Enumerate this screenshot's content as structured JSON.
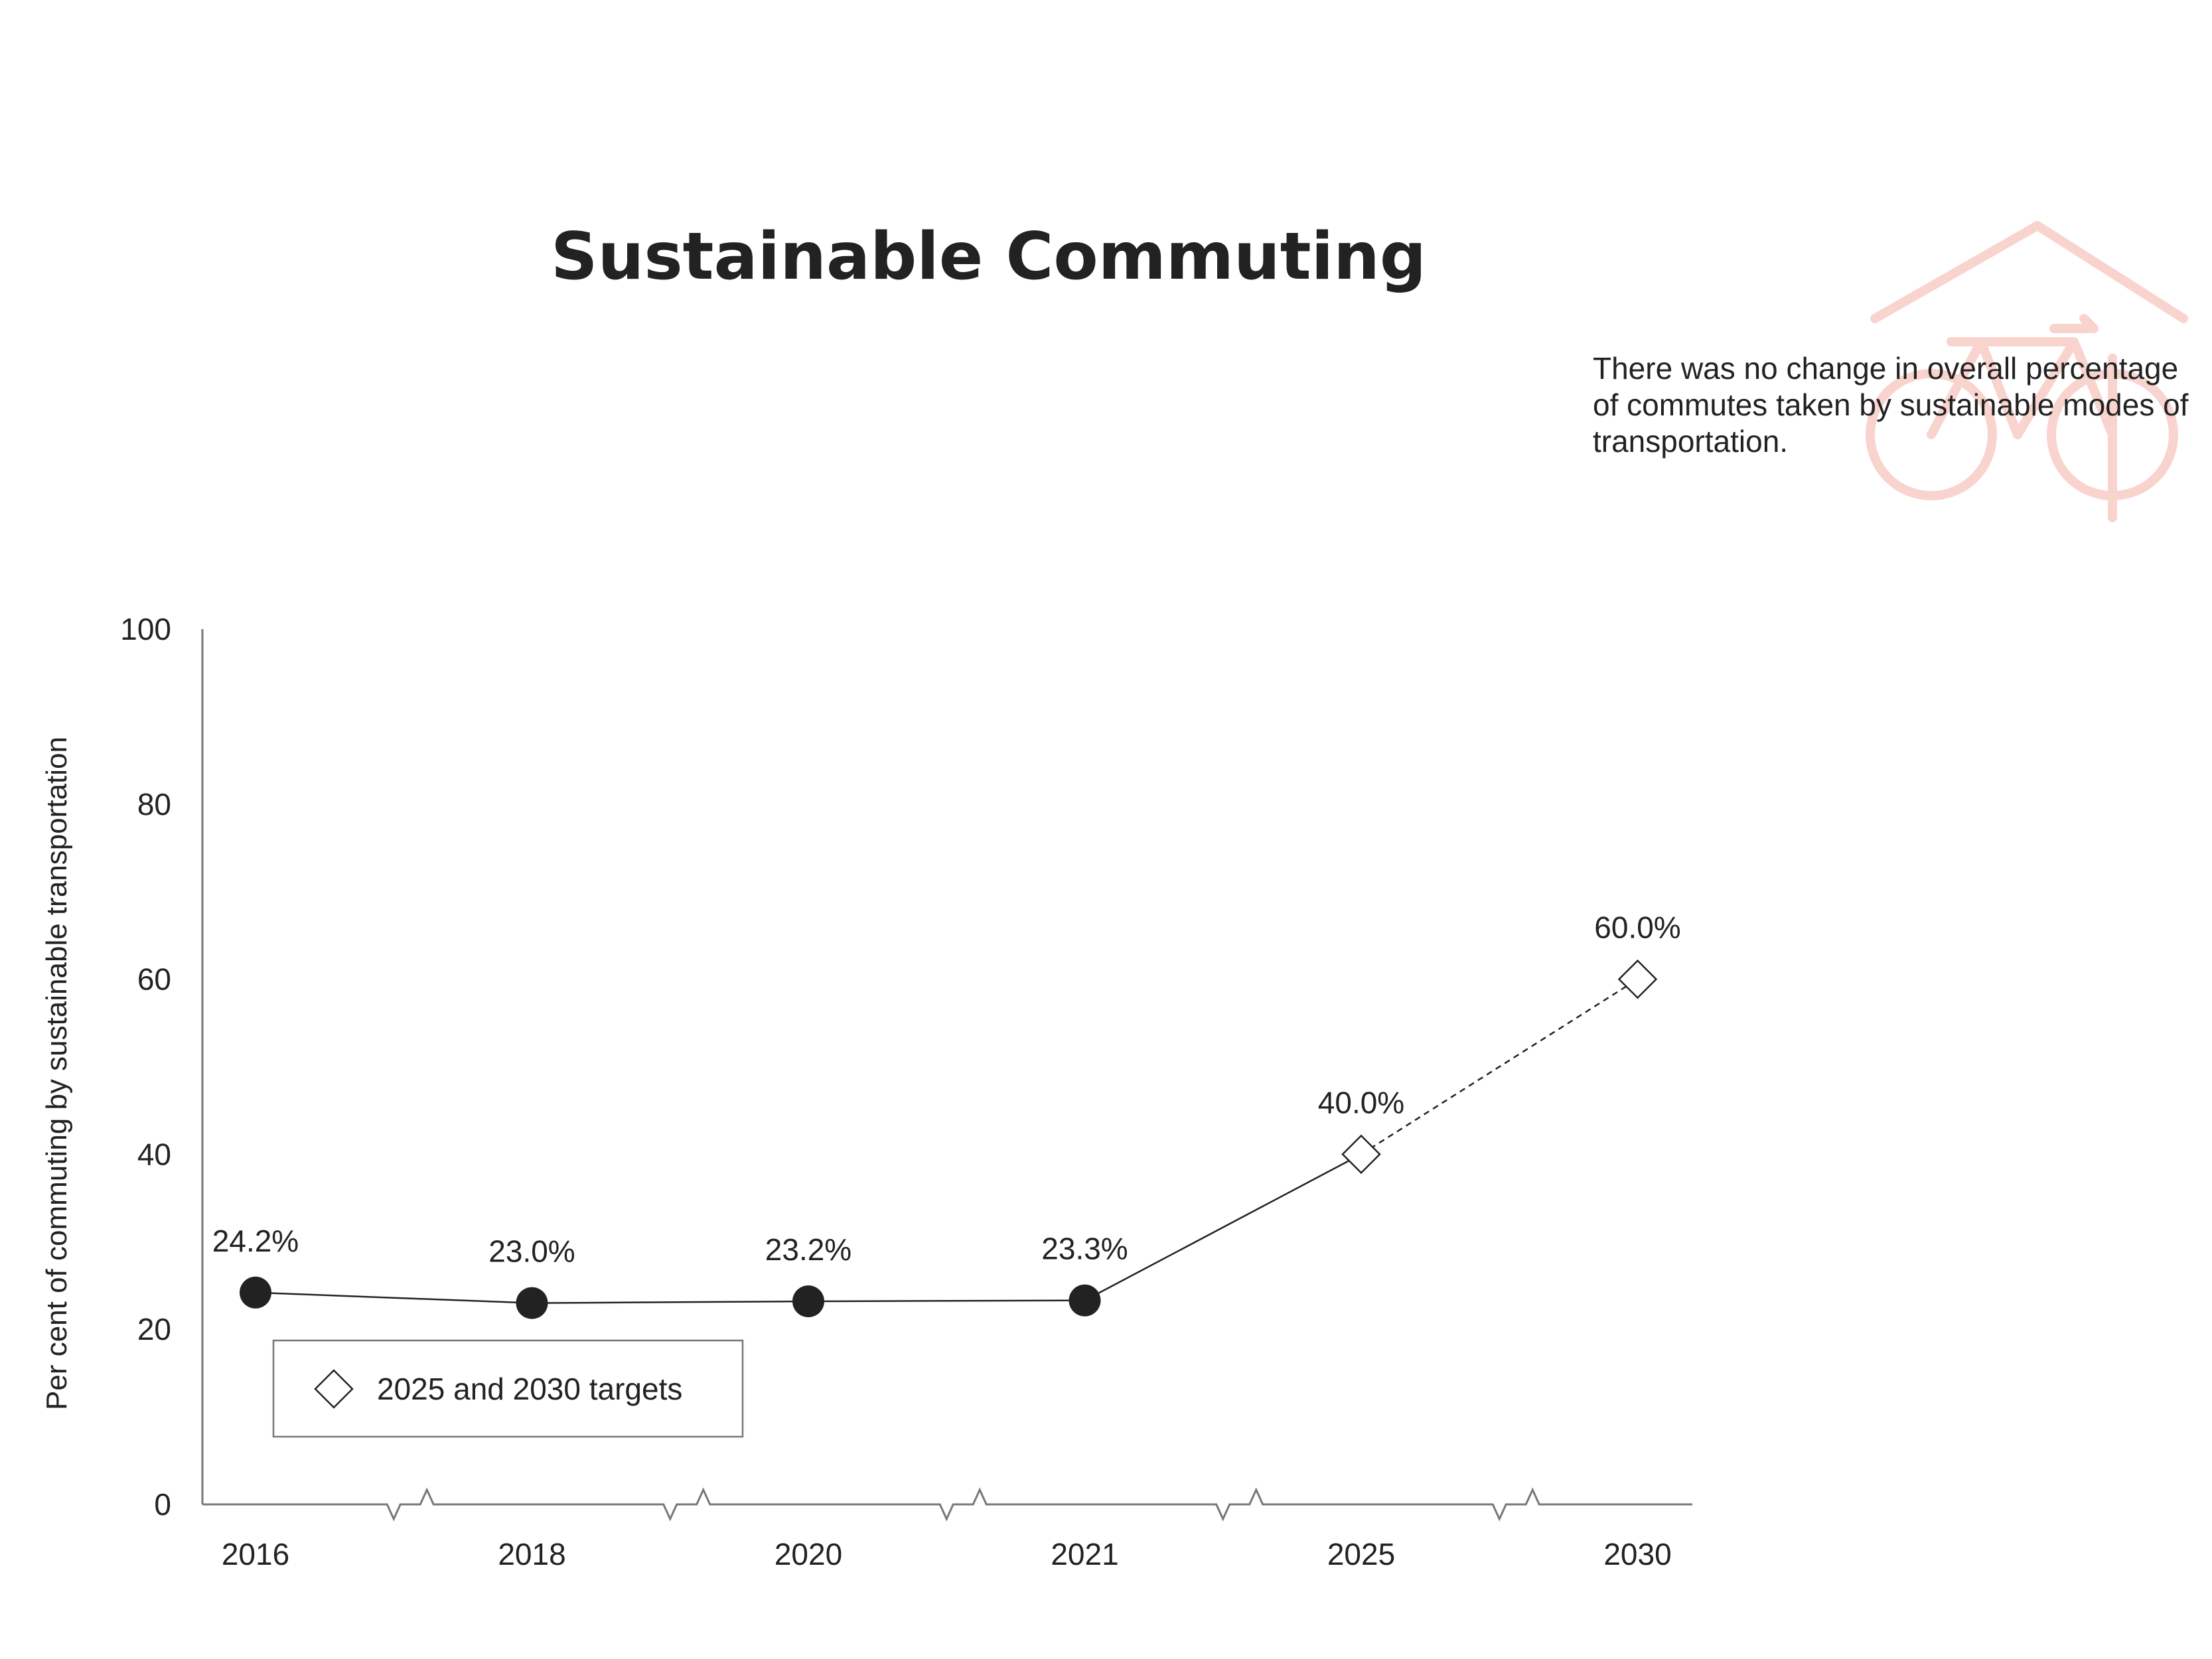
{
  "chart_data": {
    "type": "line",
    "title": "Sustainable Commuting",
    "annotation": "There was no change in overall percentage of commutes taken by sustainable modes of transportation.",
    "ylabel": "Per cent of commuting by sustainable transportation",
    "xlabel": "",
    "ylim": [
      0,
      100
    ],
    "yticks": [
      "0",
      "20",
      "40",
      "60",
      "80",
      "100"
    ],
    "categories": [
      "2016",
      "2018",
      "2020",
      "2021",
      "2025",
      "2030"
    ],
    "series": [
      {
        "kind": "actual",
        "x": [
          "2016",
          "2018",
          "2020",
          "2021"
        ],
        "values": [
          24.2,
          23.0,
          23.2,
          23.3
        ],
        "labels": [
          "24.2%",
          "23.0%",
          "23.2%",
          "23.3%"
        ]
      },
      {
        "name": "2025 and 2030 targets",
        "kind": "target",
        "x": [
          "2025",
          "2030"
        ],
        "values": [
          40.0,
          60.0
        ],
        "labels": [
          "40.0%",
          "60.0%"
        ]
      }
    ],
    "legend": {
      "entries": [
        "2025 and 2030 targets"
      ],
      "placement": "bottom-left inside plot"
    },
    "axis_breaks": true,
    "grid": false,
    "colors": {
      "text": "#222222",
      "axis": "#777777",
      "marker": "#222222",
      "icon": "#f6c9c3"
    },
    "icons": [
      "house-bicycle-icon"
    ]
  }
}
